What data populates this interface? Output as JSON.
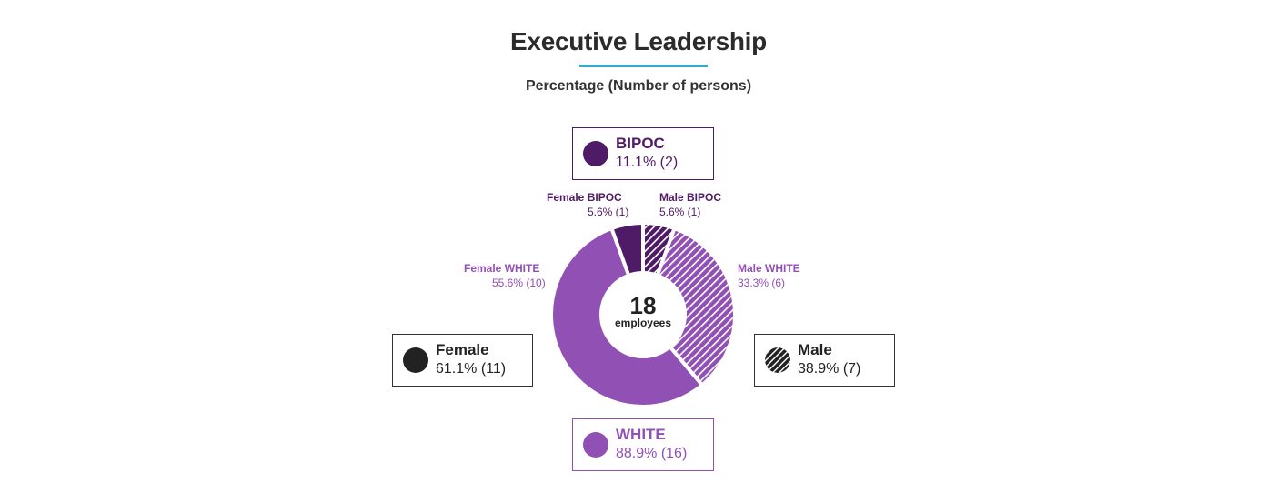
{
  "title": "Executive Leadership",
  "subtitle": "Percentage (Number of persons)",
  "colors": {
    "bipoc": "#4f1a66",
    "white": "#9150b4",
    "black": "#222222",
    "accent": "#3aa9c7"
  },
  "center": {
    "number": "18",
    "label": "employees"
  },
  "boxes": {
    "bipoc": {
      "label": "BIPOC",
      "value": "11.1% (2)"
    },
    "white": {
      "label": "WHITE",
      "value": "88.9% (16)"
    },
    "female": {
      "label": "Female",
      "value": "61.1% (11)"
    },
    "male": {
      "label": "Male",
      "value": "38.9% (7)"
    }
  },
  "segment_labels": {
    "female_bipoc": {
      "label": "Female BIPOC",
      "value": "5.6% (1)"
    },
    "male_bipoc": {
      "label": "Male BIPOC",
      "value": "5.6% (1)"
    },
    "male_white": {
      "label": "Male WHITE",
      "value": "33.3% (6)"
    },
    "female_white": {
      "label": "Female WHITE",
      "value": "55.6% (10)"
    }
  },
  "chart_data": {
    "type": "pie",
    "title": "Executive Leadership",
    "subtitle": "Percentage (Number of persons)",
    "total": 18,
    "order": "clockwise from top",
    "slices": [
      {
        "name": "Male BIPOC",
        "count": 1,
        "percent": 5.6,
        "group": "BIPOC",
        "gender": "Male",
        "pattern": "hatched"
      },
      {
        "name": "Male WHITE",
        "count": 6,
        "percent": 33.3,
        "group": "WHITE",
        "gender": "Male",
        "pattern": "hatched"
      },
      {
        "name": "Female WHITE",
        "count": 10,
        "percent": 55.6,
        "group": "WHITE",
        "gender": "Female",
        "pattern": "solid"
      },
      {
        "name": "Female BIPOC",
        "count": 1,
        "percent": 5.6,
        "group": "BIPOC",
        "gender": "Female",
        "pattern": "solid"
      }
    ]
  }
}
